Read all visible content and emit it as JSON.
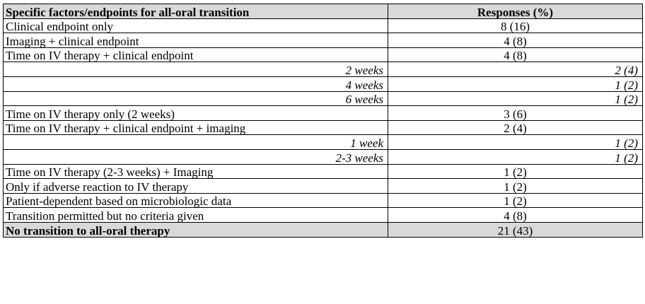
{
  "table": {
    "header": {
      "factor": "Specific factors/endpoints for all-oral transition",
      "responses": "Responses (%)"
    },
    "rows": [
      {
        "factor": "Clinical endpoint only",
        "responses": "8 (16)"
      },
      {
        "factor": "Imaging + clinical endpoint",
        "responses": "4 (8)"
      },
      {
        "factor": "Time on IV therapy + clinical endpoint",
        "responses": "4 (8)"
      },
      {
        "factor": "2 weeks",
        "responses": "2 (4)"
      },
      {
        "factor": "4 weeks",
        "responses": "1 (2)"
      },
      {
        "factor": "6 weeks",
        "responses": "1 (2)"
      },
      {
        "factor": "Time on IV therapy only (2 weeks)",
        "responses": "3 (6)"
      },
      {
        "factor": "Time on IV therapy + clinical endpoint + imaging",
        "responses": "2 (4)"
      },
      {
        "factor": "1 week",
        "responses": "1 (2)"
      },
      {
        "factor": "2-3 weeks",
        "responses": "1 (2)"
      },
      {
        "factor": "Time on IV therapy (2-3 weeks) + Imaging",
        "responses": "1 (2)"
      },
      {
        "factor": "Only if adverse reaction to IV therapy",
        "responses": "1 (2)"
      },
      {
        "factor": "Patient-dependent based on microbiologic data",
        "responses": "1 (2)"
      },
      {
        "factor": "Transition permitted but no criteria given",
        "responses": "4 (8)"
      }
    ],
    "footer": {
      "factor": "No transition to all-oral therapy",
      "responses": "21 (43)"
    }
  }
}
